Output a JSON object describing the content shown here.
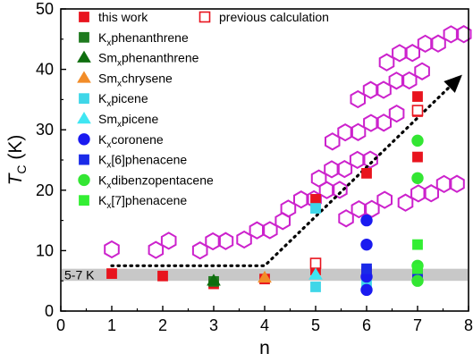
{
  "chart_data": {
    "type": "scatter",
    "xlabel": "n",
    "ylabel_symbol": "T",
    "ylabel_sub": "C",
    "ylabel_unit": " (K)",
    "xlim": [
      0,
      8
    ],
    "ylim": [
      0,
      50
    ],
    "x_ticks": [
      0,
      1,
      2,
      3,
      4,
      5,
      6,
      7,
      8
    ],
    "y_ticks": [
      0,
      10,
      20,
      30,
      40,
      50
    ],
    "band": {
      "range": [
        5,
        7
      ],
      "label": "5-7 K",
      "color": "#c8c8c8"
    },
    "trend": [
      [
        1,
        7.5
      ],
      [
        4,
        7.5
      ],
      [
        7.8,
        38.5
      ]
    ],
    "legend": [
      {
        "prefix": "this work",
        "sub": "",
        "suffix": "",
        "marker": "square",
        "color": "#e8141e",
        "filled": true
      },
      {
        "prefix": "previous calculation",
        "sub": "",
        "suffix": "",
        "marker": "square",
        "color": "#e8141e",
        "filled": false
      },
      {
        "prefix": "K",
        "sub": "x",
        "suffix": "phenanthrene",
        "marker": "square",
        "color": "#1f7a1f",
        "filled": true
      },
      {
        "prefix": "Sm",
        "sub": "x",
        "suffix": "phenanthrene",
        "marker": "triangle",
        "color": "#0f6e0f",
        "filled": true
      },
      {
        "prefix": "Sm",
        "sub": "x",
        "suffix": "chrysene",
        "marker": "triangle",
        "color": "#f28c28",
        "filled": true
      },
      {
        "prefix": "K",
        "sub": "x",
        "suffix": "picene",
        "marker": "square",
        "color": "#3fd6e8",
        "filled": true
      },
      {
        "prefix": "Sm",
        "sub": "x",
        "suffix": "picene",
        "marker": "triangle",
        "color": "#3fe6f2",
        "filled": true
      },
      {
        "prefix": "K",
        "sub": "x",
        "suffix": "coronene",
        "marker": "circle",
        "color": "#1a1af0",
        "filled": true
      },
      {
        "prefix": "K",
        "sub": "x",
        "suffix": "[6]phenacene",
        "marker": "square",
        "color": "#1a2ae8",
        "filled": true
      },
      {
        "prefix": "K",
        "sub": "x",
        "suffix": "dibenzopentacene",
        "marker": "circle",
        "color": "#33e633",
        "filled": true
      },
      {
        "prefix": "K",
        "sub": "x",
        "suffix": "[7]phenacene",
        "marker": "square",
        "color": "#33ee33",
        "filled": true
      }
    ],
    "series": [
      {
        "legend_index": 0,
        "points": [
          [
            1,
            6.2
          ],
          [
            2,
            5.8
          ],
          [
            3,
            4.5
          ],
          [
            4,
            5.3
          ],
          [
            5,
            18.5
          ],
          [
            5,
            6.8
          ],
          [
            6,
            22.8
          ],
          [
            6,
            6.5
          ],
          [
            7,
            35.5
          ],
          [
            7,
            33.0
          ],
          [
            7,
            25.5
          ],
          [
            7,
            6.3
          ]
        ]
      },
      {
        "legend_index": 1,
        "points": [
          [
            5,
            7.9
          ],
          [
            7,
            33.2
          ]
        ]
      },
      {
        "legend_index": 2,
        "points": [
          [
            3,
            4.9
          ]
        ]
      },
      {
        "legend_index": 3,
        "points": [
          [
            3,
            5.0
          ]
        ]
      },
      {
        "legend_index": 4,
        "points": [
          [
            4,
            5.5
          ]
        ]
      },
      {
        "legend_index": 5,
        "points": [
          [
            5,
            17.0
          ],
          [
            5,
            4.0
          ],
          [
            6,
            4.5
          ]
        ]
      },
      {
        "legend_index": 6,
        "points": [
          [
            5,
            6.0
          ]
        ]
      },
      {
        "legend_index": 7,
        "points": [
          [
            6,
            15.0
          ],
          [
            6,
            11.0
          ],
          [
            6,
            5.7
          ],
          [
            6,
            3.5
          ]
        ]
      },
      {
        "legend_index": 8,
        "points": [
          [
            6,
            7.0
          ],
          [
            7,
            5.8
          ]
        ]
      },
      {
        "legend_index": 9,
        "points": [
          [
            7,
            28.2
          ],
          [
            7,
            22.0
          ],
          [
            7,
            7.5
          ],
          [
            7,
            5.0
          ]
        ]
      },
      {
        "legend_index": 10,
        "points": [
          [
            7,
            11.0
          ],
          [
            7,
            7.0
          ]
        ]
      }
    ]
  }
}
